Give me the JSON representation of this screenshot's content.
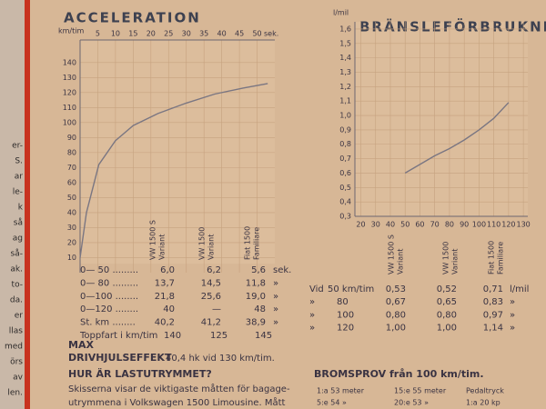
{
  "margin_fragments": [
    "er-",
    "S.",
    "ar",
    "le-",
    "k",
    "så",
    "ag",
    "så-",
    "ak.",
    "to-",
    "da.",
    "er",
    "llas",
    "med",
    "örs",
    "av",
    "len."
  ],
  "chart_data": [
    {
      "type": "line",
      "title": "ACCELERATION",
      "x_label": "sek.",
      "y_label": "km/tim",
      "x": [
        0,
        1.8,
        5.3,
        10,
        15,
        22,
        30,
        38,
        46,
        53
      ],
      "series": [
        {
          "color": "#7a7682",
          "values": [
            10,
            40,
            72,
            88,
            98,
            106,
            113,
            119,
            123,
            126
          ]
        }
      ],
      "xlim": [
        0,
        55
      ],
      "ylim": [
        0,
        155
      ],
      "xticks": [
        5,
        10,
        15,
        20,
        25,
        30,
        35,
        40,
        45,
        50
      ],
      "yticks": [
        10,
        20,
        30,
        40,
        50,
        60,
        70,
        80,
        90,
        100,
        110,
        120,
        130,
        140
      ],
      "x_axis_position": "top",
      "grid": true
    },
    {
      "type": "line",
      "title": "BRÄNSLEFÖRBRUKNING",
      "y_label": "l/mil",
      "x": [
        50,
        60,
        70,
        80,
        90,
        100,
        110,
        120
      ],
      "series": [
        {
          "color": "#7a7682",
          "values": [
            0.6,
            0.66,
            0.72,
            0.77,
            0.83,
            0.9,
            0.98,
            1.09
          ]
        }
      ],
      "xlim": [
        16,
        133
      ],
      "ylim": [
        0.3,
        1.65
      ],
      "xticks": [
        20,
        30,
        40,
        50,
        60,
        70,
        80,
        90,
        100,
        110,
        120,
        130
      ],
      "yticks": [
        {
          "value": 0.3,
          "label": "0,3"
        },
        {
          "value": 0.4,
          "label": "0,4"
        },
        {
          "value": 0.5,
          "label": "0,5"
        },
        {
          "value": 0.6,
          "label": "0,6"
        },
        {
          "value": 0.7,
          "label": "0,7"
        },
        {
          "value": 0.8,
          "label": "0,8"
        },
        {
          "value": 0.9,
          "label": "0,9"
        },
        {
          "value": 1.0,
          "label": "1,0"
        },
        {
          "value": 1.1,
          "label": "1,1"
        },
        {
          "value": 1.2,
          "label": "1,2"
        },
        {
          "value": 1.3,
          "label": "1,3"
        },
        {
          "value": 1.4,
          "label": "1,4"
        },
        {
          "value": 1.5,
          "label": "1,5"
        },
        {
          "value": 1.6,
          "label": "1,6"
        }
      ],
      "x_axis_position": "bottom",
      "grid": true
    }
  ],
  "acceleration_table": {
    "columns": [
      [
        "VW 1500 S",
        "Variant"
      ],
      [
        "VW 1500",
        "Variant"
      ],
      [
        "Fiat 1500",
        "Familiare"
      ]
    ],
    "rows": [
      [
        "0— 50 .........",
        "6,0",
        "6,2",
        "5,6",
        "sek."
      ],
      [
        "0— 80 .........",
        "13,7",
        "14,5",
        "11,8",
        "»"
      ],
      [
        "0—100 ........",
        "21,8",
        "25,6",
        "19,0",
        "»"
      ],
      [
        "0—120 ........",
        "40",
        "—",
        "48",
        "»"
      ],
      [
        "St. km ........",
        "40,2",
        "41,2",
        "38,9",
        "»"
      ],
      [
        "Toppfart i km/tim",
        "140",
        "125",
        "145"
      ]
    ]
  },
  "fuel_table": {
    "columns": [
      [
        "VW 1500 S",
        "Variant"
      ],
      [
        "VW 1500",
        "Variant"
      ],
      [
        "Fiat 1500",
        "Familiare"
      ]
    ],
    "rows": [
      [
        "Vid",
        "50 km/tim",
        "0,53",
        "0,52",
        "0,71",
        "l/mil"
      ],
      [
        "»",
        "80",
        "0,67",
        "0,65",
        "0,83",
        "»"
      ],
      [
        "»",
        "100",
        "0,80",
        "0,80",
        "0,97",
        "»"
      ],
      [
        "»",
        "120",
        "1,00",
        "1,00",
        "1,14",
        "»"
      ]
    ]
  },
  "text": {
    "max": "MAX",
    "drive_heading": "DRIVHJULSEFFEKT",
    "drive_value": "40,4 hk vid 130 km/tim.",
    "cargo_heading": "HUR ÄR LASTUTRYMMET?",
    "cargo_lines": [
      "Skisserna visar de viktigaste måtten för bagage-",
      "utrymmena i Volkswagen 1500 Limousine. Mått"
    ],
    "brake_heading": "BROMSPROV från 100 km/tim.",
    "brake_rows": [
      [
        "1:a 53 meter",
        "15:e 55 meter",
        "Pedaltryck"
      ],
      [
        "5:e 54 »",
        "20:e 53 »",
        "1:a 20 kp"
      ]
    ]
  }
}
